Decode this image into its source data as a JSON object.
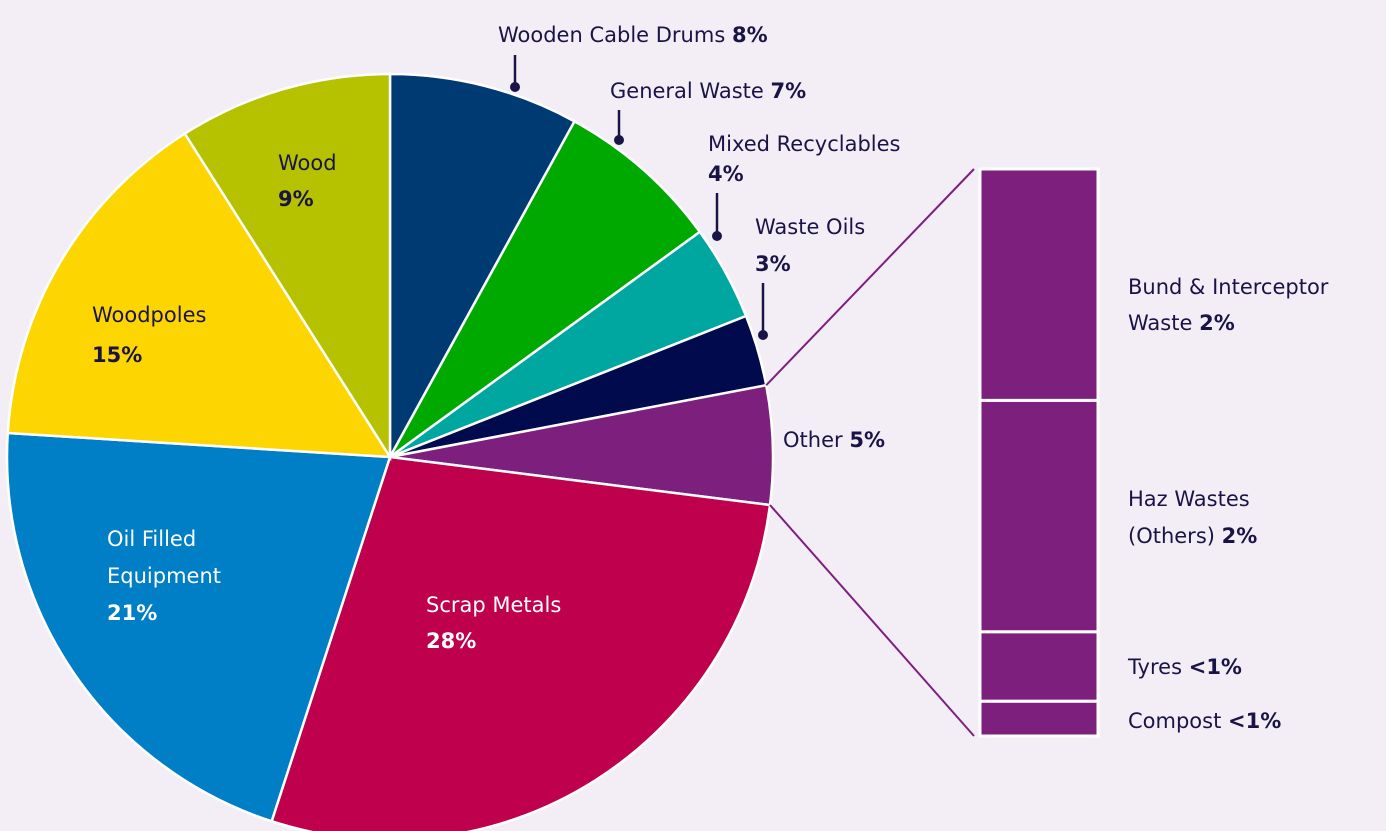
{
  "chart_data": {
    "type": "pie",
    "slices": [
      {
        "name": "Wooden Cable Drums",
        "value": 8,
        "pct": "8%",
        "color": "#003a73"
      },
      {
        "name": "General Waste",
        "value": 7,
        "pct": "7%",
        "color": "#00a900"
      },
      {
        "name": "Mixed Recyclables",
        "value": 4,
        "pct": "4%",
        "color": "#00a6a0"
      },
      {
        "name": "Waste Oils",
        "value": 3,
        "pct": "3%",
        "color": "#000a4c"
      },
      {
        "name": "Other",
        "value": 5,
        "pct": "5%",
        "color": "#7d1f7d"
      },
      {
        "name": "Scrap Metals",
        "value": 28,
        "pct": "28%",
        "color": "#bf004d"
      },
      {
        "name": "Oil Filled Equipment",
        "value": 21,
        "pct": "21%",
        "color": "#007ec6"
      },
      {
        "name": "Woodpoles",
        "value": 15,
        "pct": "15%",
        "color": "#fdd500"
      },
      {
        "name": "Wood",
        "value": 9,
        "pct": "9%",
        "color": "#b6c200"
      }
    ],
    "breakdown_of": "Other",
    "breakdown": [
      {
        "name": "Bund & Interceptor Waste",
        "value": 2,
        "pct": "2%"
      },
      {
        "name": "Haz Wastes (Others)",
        "value": 2,
        "pct": "2%"
      },
      {
        "name": "Tyres",
        "value": 0.6,
        "pct": "<1%"
      },
      {
        "name": "Compost",
        "value": 0.3,
        "pct": "<1%"
      }
    ]
  },
  "labels": {
    "wooden_cable_drums": {
      "name": "Wooden Cable Drums",
      "pct": "8%"
    },
    "general_waste": {
      "name": "General Waste",
      "pct": "7%"
    },
    "mixed_recyclables": {
      "name": "Mixed Recyclables",
      "pct": "4%"
    },
    "waste_oils": {
      "name": "Waste Oils",
      "pct": "3%"
    },
    "other": {
      "name": "Other",
      "pct": "5%"
    },
    "scrap_metals": {
      "name": "Scrap Metals",
      "pct": "28%"
    },
    "oil_filled_equipment": {
      "line1": "Oil Filled",
      "line2": "Equipment",
      "pct": "21%"
    },
    "woodpoles": {
      "name": "Woodpoles",
      "pct": "15%"
    },
    "wood": {
      "name": "Wood",
      "pct": "9%"
    },
    "bund_interceptor": {
      "line1": "Bund & Interceptor",
      "line2": "Waste",
      "pct": "2%"
    },
    "haz_wastes": {
      "line1": "Haz Wastes",
      "line2": "(Others)",
      "pct": "2%"
    },
    "tyres": {
      "name": "Tyres",
      "pct": "<1%"
    },
    "compost": {
      "name": "Compost",
      "pct": "<1%"
    }
  }
}
